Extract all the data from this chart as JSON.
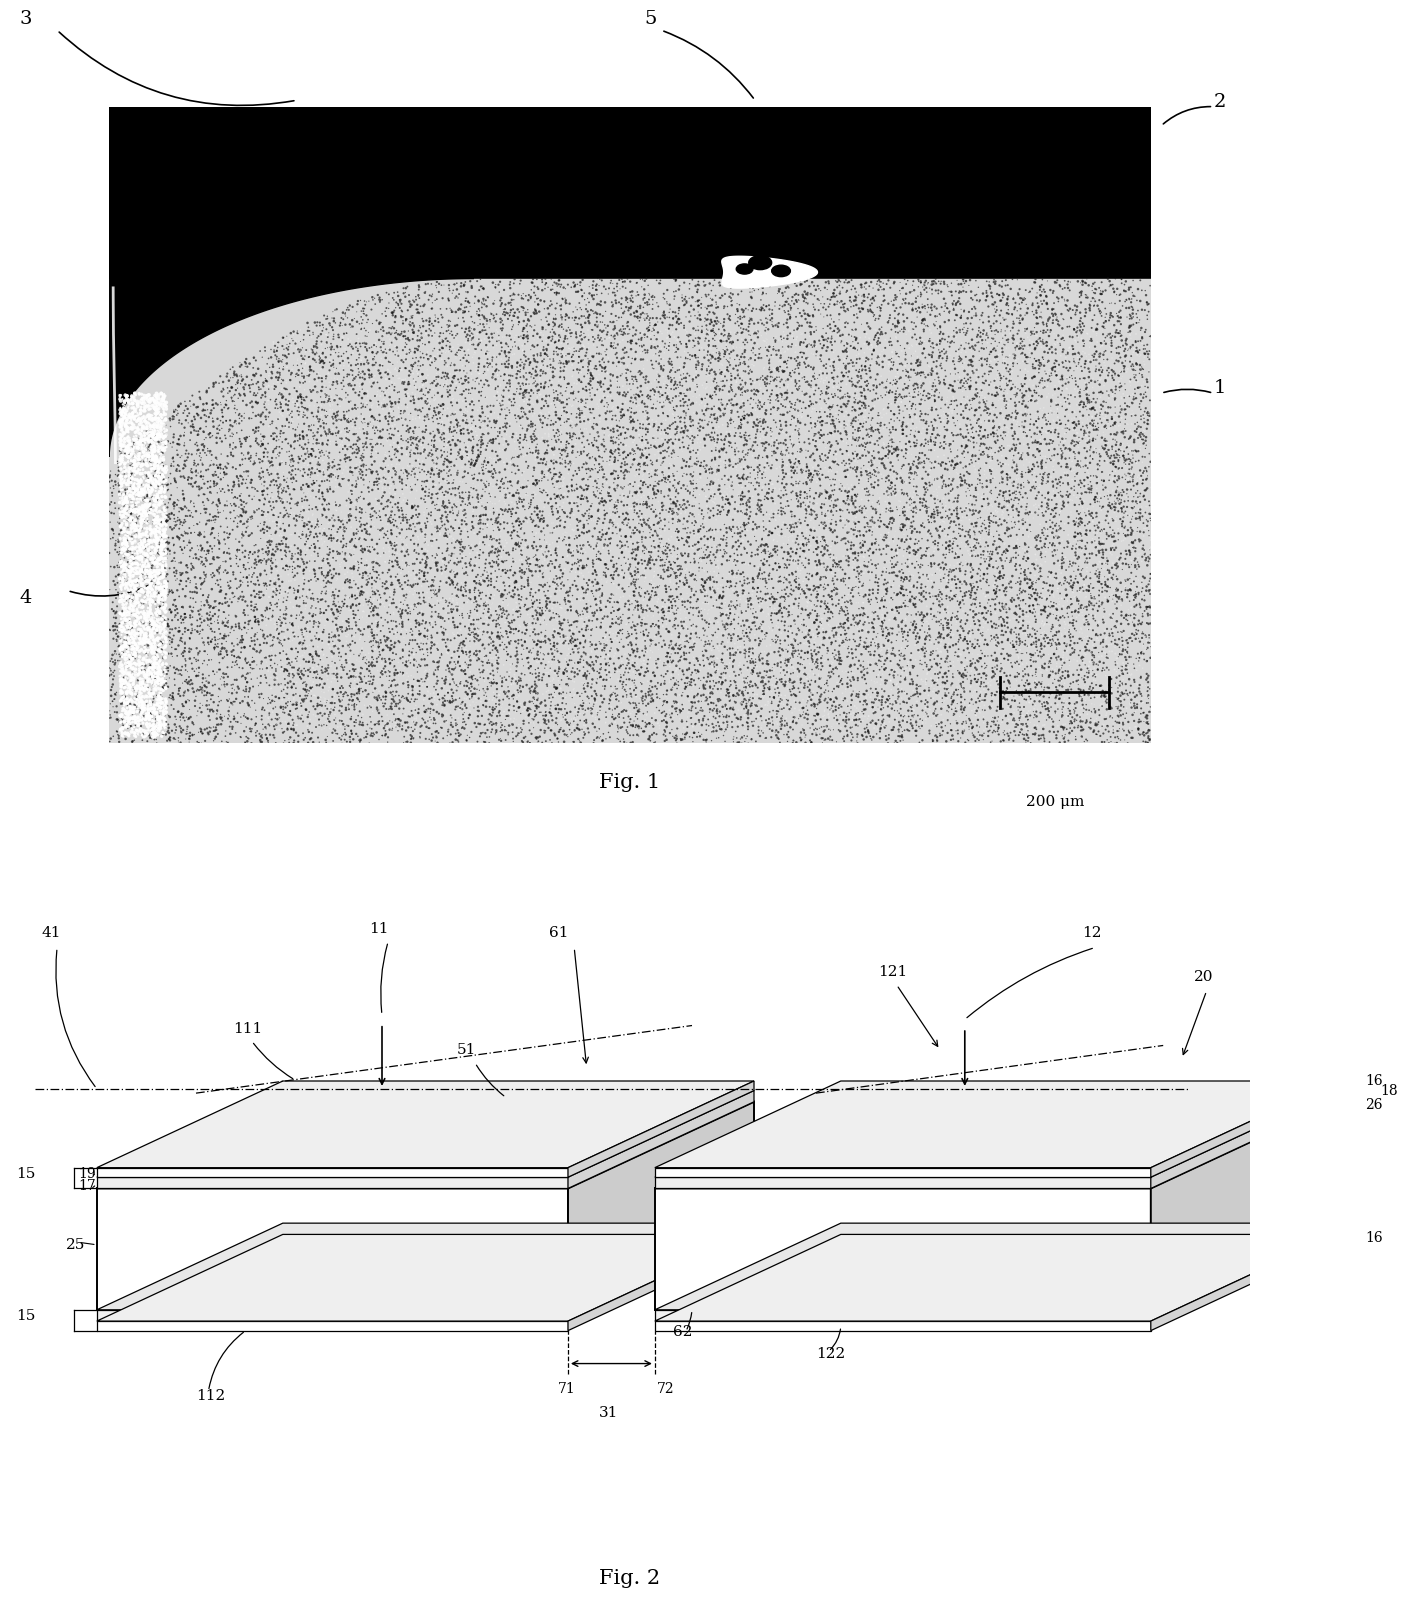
{
  "fig1_caption": "Fig. 1",
  "fig2_caption": "Fig. 2",
  "scale_bar_text": "200 μm",
  "bg_color": "#ffffff",
  "black": "#000000"
}
